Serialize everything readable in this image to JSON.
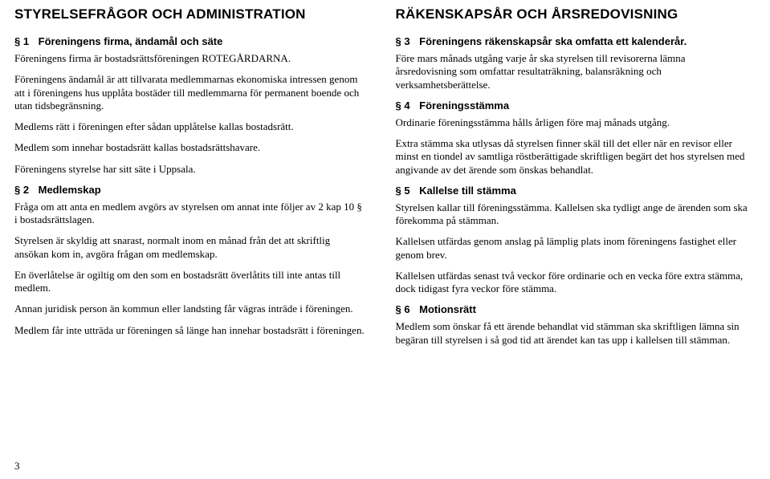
{
  "left": {
    "main": "STYRELSEFRÅGOR OCH ADMINISTRATION",
    "s1": {
      "num": "§ 1",
      "title": "Föreningens firma, ändamål och säte"
    },
    "p1": "Föreningens firma är bostadsrättsföreningen ROTEGÅRDARNA.",
    "p2": "Föreningens ändamål är att tillvarata medlemmarnas ekonomiska intressen genom att i föreningens hus upplåta bostäder till medlemmarna för permanent boende och utan tidsbegränsning.",
    "p3": "Medlems rätt i föreningen efter sådan upplåtelse kallas bostadsrätt.",
    "p4": "Medlem som innehar bostadsrätt kallas bostadsrättshavare.",
    "p5": "Föreningens styrelse har sitt säte i Uppsala.",
    "s2": {
      "num": "§ 2",
      "title": "Medlemskap"
    },
    "p6": "Fråga om att anta en medlem avgörs av styrelsen om annat inte följer av 2 kap 10 § i bostadsrättslagen.",
    "p7": "Styrelsen är skyldig att snarast, normalt inom en månad från det att skriftlig ansökan kom in, avgöra frågan om medlemskap.",
    "p8": "En överlåtelse är ogiltig om den som en bostadsrätt överlåtits till inte antas till medlem.",
    "p9": "Annan juridisk person än kommun eller landsting får vägras inträde i föreningen.",
    "p10": "Medlem får inte utträda ur föreningen så länge han innehar bostadsrätt i föreningen."
  },
  "right": {
    "main": "RÄKENSKAPSÅR OCH ÅRSREDOVISNING",
    "s3": {
      "num": "§ 3",
      "title": "Föreningens räkenskapsår ska omfatta ett kalenderår."
    },
    "p1": "Före mars månads utgång varje år ska styrelsen till revisorerna lämna årsredovisning som omfattar resultaträkning, balansräkning och verksamhetsberättelse.",
    "s4": {
      "num": "§ 4",
      "title": "Föreningsstämma"
    },
    "p2": "Ordinarie föreningsstämma hålls årligen före maj månads utgång.",
    "p3": "Extra stämma ska utlysas då styrelsen finner skäl till det eller när en revisor eller minst en tiondel av samtliga röstberättigade skriftligen begärt det hos styrelsen med angivande av det ärende som önskas behandlat.",
    "s5": {
      "num": "§ 5",
      "title": "Kallelse till stämma"
    },
    "p4": "Styrelsen kallar till föreningsstämma. Kallelsen ska tydligt ange de ärenden som ska förekomma på stämman.",
    "p5": "Kallelsen utfärdas genom anslag på lämplig plats inom föreningens fastighet eller genom brev.",
    "p6": "Kallelsen utfärdas senast två veckor före ordinarie och en vecka före extra stämma, dock tidigast fyra veckor före stämma.",
    "s6": {
      "num": "§ 6",
      "title": "Motionsrätt"
    },
    "p7": "Medlem som önskar få ett ärende behandlat vid stämman ska skriftligen lämna sin begäran till styrelsen i så god tid att ärendet kan tas upp i kallelsen till stämman."
  },
  "pagenum": "3"
}
